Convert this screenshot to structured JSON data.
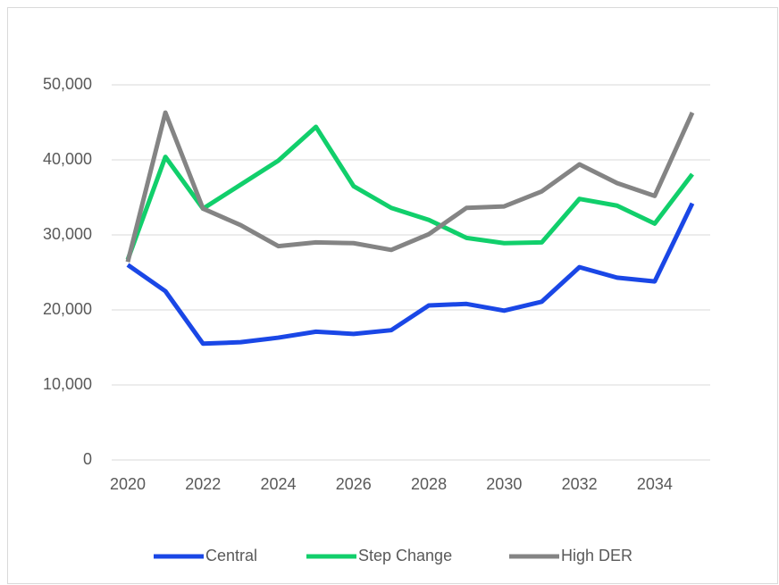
{
  "chart_data": {
    "type": "line",
    "x": [
      2020,
      2021,
      2022,
      2023,
      2024,
      2025,
      2026,
      2027,
      2028,
      2029,
      2030,
      2031,
      2032,
      2033,
      2034,
      2035
    ],
    "xlim": [
      2020,
      2035
    ],
    "xticks": [
      2020,
      2022,
      2024,
      2026,
      2028,
      2030,
      2032,
      2034
    ],
    "ylim": [
      0,
      50000
    ],
    "yticks": [
      0,
      {
        "value": 10000,
        "label": "10,000"
      },
      {
        "value": 20000,
        "label": "20,000"
      },
      {
        "value": 30000,
        "label": "30,000"
      },
      {
        "value": 40000,
        "label": "40,000"
      },
      {
        "value": 50000,
        "label": "50,000"
      }
    ],
    "grid": true,
    "legend": "bottom",
    "series": [
      {
        "name": "Central",
        "color": "#1a47e6",
        "values": [
          26000,
          22500,
          15500,
          15700,
          16300,
          17100,
          16800,
          17300,
          20600,
          20800,
          19900,
          21100,
          25700,
          24300,
          23800,
          34200
        ]
      },
      {
        "name": "Step Change",
        "color": "#11cf6b",
        "values": [
          26700,
          40400,
          33500,
          36700,
          39900,
          44400,
          36500,
          33600,
          32000,
          29600,
          28900,
          29000,
          34800,
          33900,
          31500,
          38100
        ]
      },
      {
        "name": "High DER",
        "color": "#848484",
        "values": [
          26400,
          46300,
          33500,
          31300,
          28500,
          29000,
          28900,
          28000,
          30100,
          33600,
          33800,
          35800,
          39400,
          36900,
          35200,
          46300
        ]
      }
    ]
  }
}
